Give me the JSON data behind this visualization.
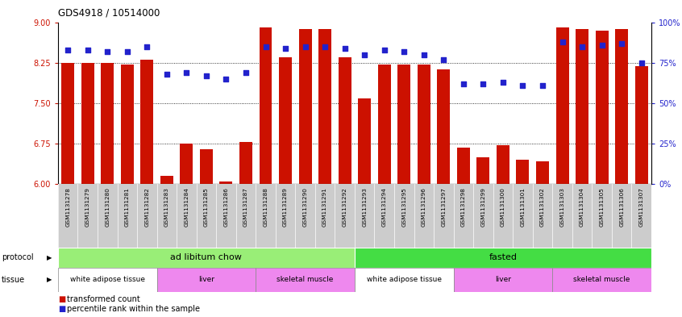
{
  "title": "GDS4918 / 10514000",
  "samples": [
    "GSM1131278",
    "GSM1131279",
    "GSM1131280",
    "GSM1131281",
    "GSM1131282",
    "GSM1131283",
    "GSM1131284",
    "GSM1131285",
    "GSM1131286",
    "GSM1131287",
    "GSM1131288",
    "GSM1131289",
    "GSM1131290",
    "GSM1131291",
    "GSM1131292",
    "GSM1131293",
    "GSM1131294",
    "GSM1131295",
    "GSM1131296",
    "GSM1131297",
    "GSM1131298",
    "GSM1131299",
    "GSM1131300",
    "GSM1131301",
    "GSM1131302",
    "GSM1131303",
    "GSM1131304",
    "GSM1131305",
    "GSM1131306",
    "GSM1131307"
  ],
  "bar_values": [
    8.25,
    8.25,
    8.25,
    8.22,
    8.3,
    6.15,
    6.75,
    6.65,
    6.05,
    6.78,
    8.9,
    8.35,
    8.88,
    8.88,
    8.35,
    7.58,
    8.22,
    8.22,
    8.22,
    8.12,
    6.68,
    6.5,
    6.72,
    6.45,
    6.42,
    8.9,
    8.88,
    8.85,
    8.88,
    8.18
  ],
  "dot_values": [
    83,
    83,
    82,
    82,
    85,
    68,
    69,
    67,
    65,
    69,
    85,
    84,
    85,
    85,
    84,
    80,
    83,
    82,
    80,
    77,
    62,
    62,
    63,
    61,
    61,
    88,
    85,
    86,
    87,
    75
  ],
  "ylim_left": [
    6.0,
    9.0
  ],
  "ylim_right": [
    0,
    100
  ],
  "yticks_left": [
    6.0,
    6.75,
    7.5,
    8.25,
    9.0
  ],
  "yticks_right": [
    0,
    25,
    50,
    75,
    100
  ],
  "bar_color": "#CC1100",
  "dot_color": "#2222CC",
  "grid_color": "#000000",
  "tick_bg": "#CCCCCC",
  "protocol_labels": [
    "ad libitum chow",
    "fasted"
  ],
  "protocol_colors": [
    "#99EE77",
    "#44DD44"
  ],
  "tissue_labels": [
    "white adipose tissue",
    "liver",
    "skeletal muscle",
    "white adipose tissue",
    "liver",
    "skeletal muscle"
  ],
  "tissue_colors": [
    "#FFFFFF",
    "#EE88EE",
    "#EE88EE",
    "#FFFFFF",
    "#EE88EE",
    "#EE88EE"
  ],
  "tissue_ranges_samples": [
    [
      0,
      5
    ],
    [
      5,
      10
    ],
    [
      10,
      15
    ],
    [
      15,
      20
    ],
    [
      20,
      25
    ],
    [
      25,
      30
    ]
  ],
  "legend_items": [
    "transformed count",
    "percentile rank within the sample"
  ],
  "legend_colors": [
    "#CC1100",
    "#2222CC"
  ]
}
